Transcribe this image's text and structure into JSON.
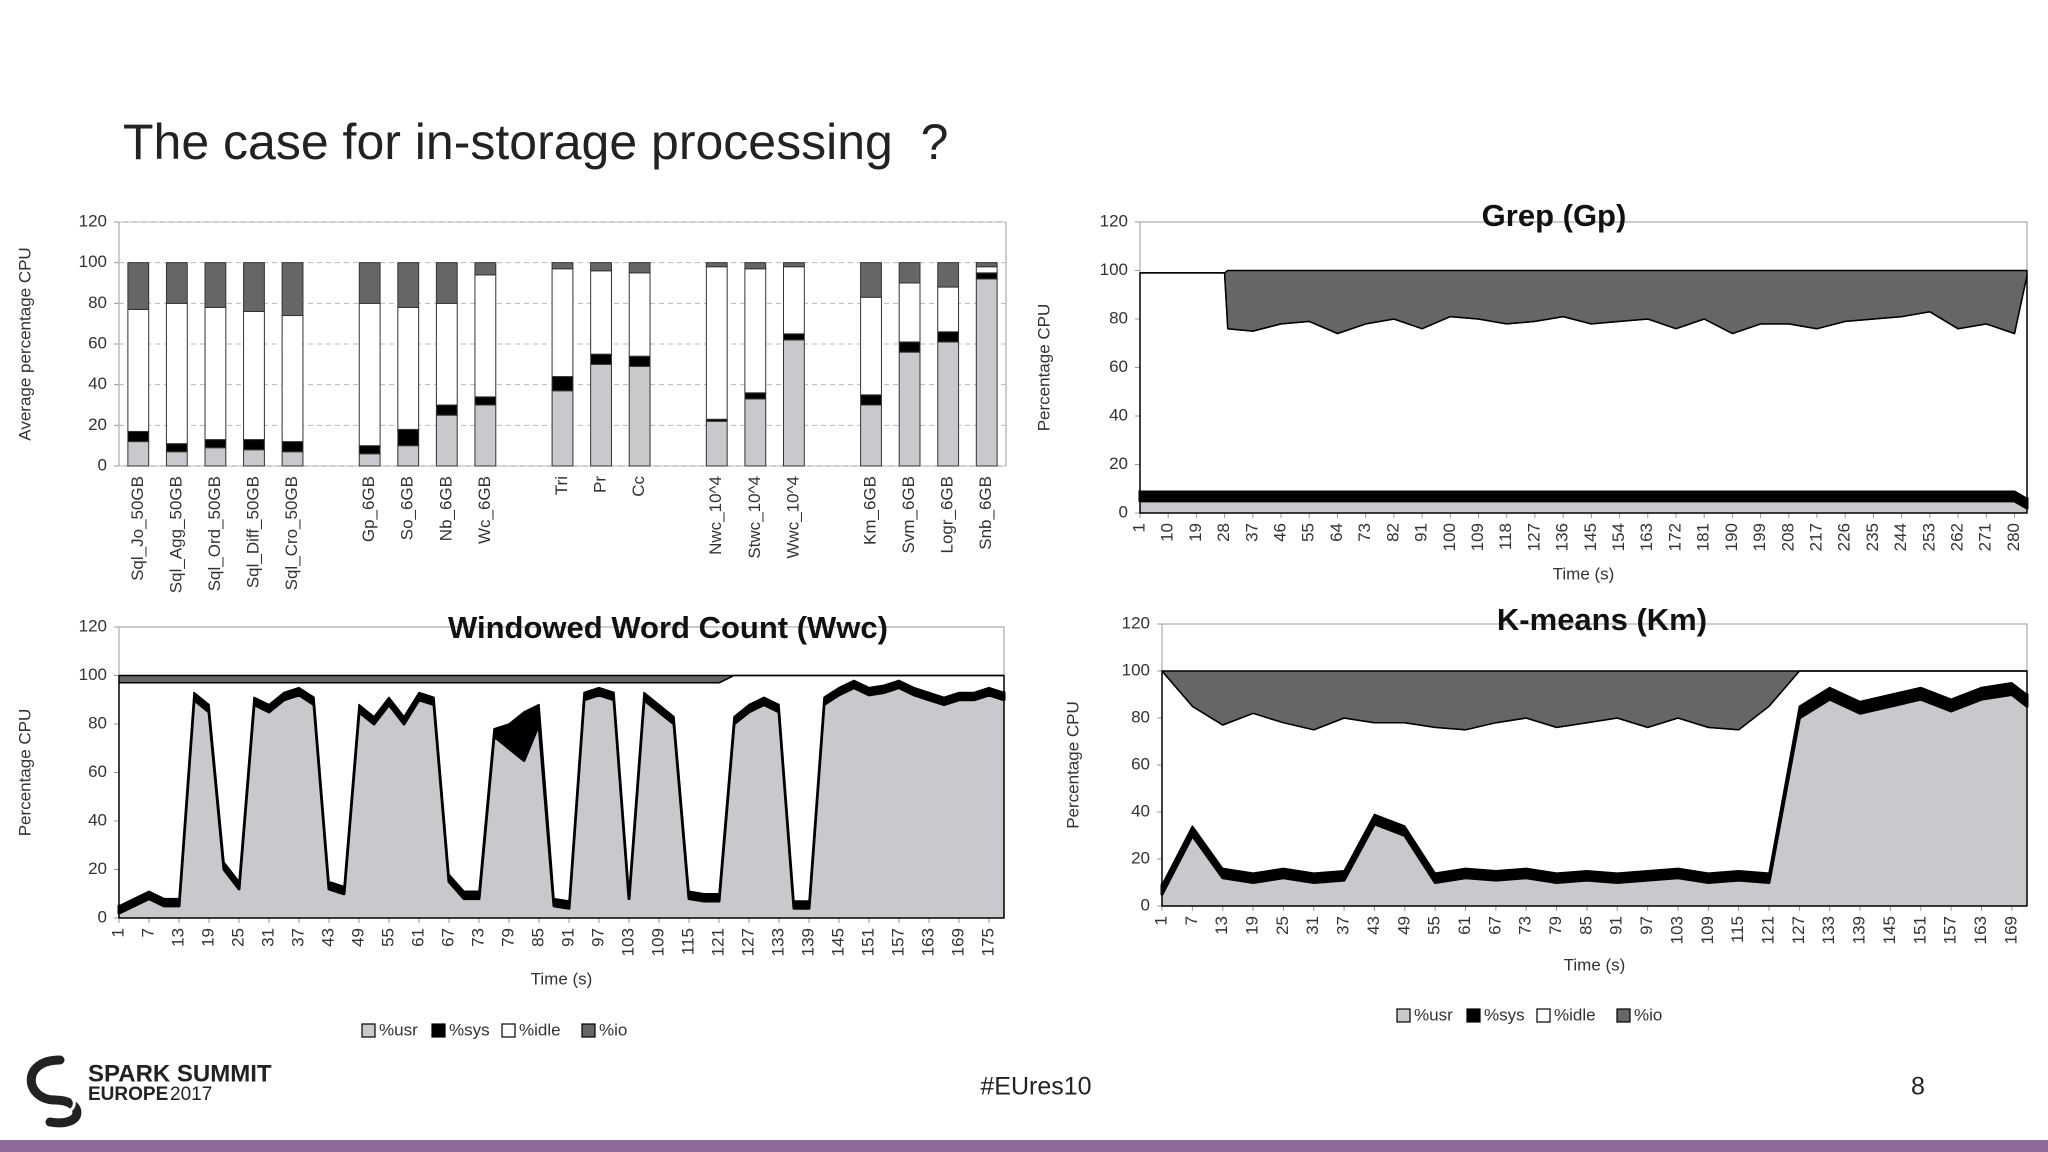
{
  "title": "The case for in-storage processing  ?",
  "footer": {
    "brand_line1": "SPARK SUMMIT",
    "brand_line2a": "EUROPE",
    "brand_line2b": "2017",
    "hashtag": "#EUres10",
    "page_number": "8"
  },
  "chart_data": [
    {
      "type": "bar",
      "stacked": true,
      "y_label": "Average percentage CPU",
      "categories": [
        "Sql_Jo_50GB",
        "Sql_Agg_50GB",
        "Sql_Ord_50GB",
        "Sql_Diff_50GB",
        "Sql_Cro_50GB",
        null,
        "Gp_6GB",
        "So_6GB",
        "Nb_6GB",
        "Wc_6GB",
        null,
        "Tri",
        "Pr",
        "Cc",
        null,
        "Nwc_10^4",
        "Stwc_10^4",
        "Wwc_10^4",
        null,
        "Km_6GB",
        "Svm_6GB",
        "Logr_6GB",
        "Snb_6GB"
      ],
      "series": [
        {
          "color": "#c9c9cd",
          "values": [
            12,
            7,
            9,
            8,
            7,
            null,
            6,
            10,
            25,
            30,
            null,
            37,
            50,
            49,
            null,
            22,
            33,
            62,
            null,
            30,
            56,
            61,
            92
          ]
        },
        {
          "color": "#000000",
          "values": [
            5,
            4,
            4,
            5,
            5,
            null,
            4,
            8,
            5,
            4,
            null,
            7,
            5,
            5,
            null,
            1,
            3,
            3,
            null,
            5,
            5,
            5,
            3
          ]
        },
        {
          "color": "#ffffff",
          "values": [
            60,
            69,
            65,
            63,
            62,
            null,
            70,
            60,
            50,
            60,
            null,
            53,
            41,
            41,
            null,
            75,
            61,
            33,
            null,
            48,
            29,
            22,
            3
          ]
        },
        {
          "color": "#666666",
          "values": [
            23,
            20,
            22,
            24,
            26,
            null,
            20,
            22,
            20,
            6,
            null,
            3,
            4,
            5,
            null,
            2,
            3,
            2,
            null,
            17,
            10,
            12,
            2
          ]
        }
      ],
      "ylim": [
        0,
        120
      ],
      "yticks": [
        0,
        20,
        40,
        60,
        80,
        100,
        120
      ],
      "grid": true
    },
    {
      "type": "area",
      "stacked": true,
      "title": "Grep (Gp)",
      "x_label": "Time (s)",
      "y_label": "Percentage CPU",
      "x": [
        1,
        10,
        19,
        28,
        29,
        37,
        46,
        55,
        64,
        73,
        82,
        91,
        100,
        109,
        118,
        127,
        136,
        145,
        154,
        163,
        172,
        181,
        190,
        199,
        208,
        217,
        226,
        235,
        244,
        253,
        262,
        271,
        280,
        284
      ],
      "series": [
        {
          "color": "#c9c9cd",
          "values": [
            5,
            5,
            5,
            5,
            5,
            5,
            5,
            5,
            5,
            5,
            5,
            5,
            5,
            5,
            5,
            5,
            5,
            5,
            5,
            5,
            5,
            5,
            5,
            5,
            5,
            5,
            5,
            5,
            5,
            5,
            5,
            5,
            5,
            2
          ]
        },
        {
          "color": "#000000",
          "values": [
            4,
            4,
            4,
            4,
            4,
            4,
            4,
            4,
            4,
            4,
            4,
            4,
            4,
            4,
            4,
            4,
            4,
            4,
            4,
            4,
            4,
            4,
            4,
            4,
            4,
            4,
            4,
            4,
            4,
            4,
            4,
            4,
            4,
            4
          ]
        },
        {
          "color": "#ffffff",
          "values": [
            90,
            90,
            90,
            90,
            67,
            66,
            69,
            70,
            65,
            69,
            71,
            67,
            72,
            71,
            69,
            70,
            72,
            69,
            70,
            71,
            67,
            71,
            65,
            69,
            69,
            67,
            70,
            71,
            72,
            74,
            67,
            69,
            65,
            92
          ]
        },
        {
          "color": "#666666",
          "values": [
            0,
            0,
            0,
            0,
            24,
            25,
            22,
            21,
            26,
            22,
            20,
            24,
            19,
            20,
            22,
            21,
            19,
            22,
            21,
            20,
            24,
            20,
            26,
            22,
            22,
            24,
            21,
            20,
            19,
            17,
            24,
            22,
            26,
            2
          ]
        }
      ],
      "xlim": [
        1,
        284
      ],
      "xticks": [
        1,
        10,
        19,
        28,
        37,
        46,
        55,
        64,
        73,
        82,
        91,
        100,
        109,
        118,
        127,
        136,
        145,
        154,
        163,
        172,
        181,
        190,
        199,
        208,
        217,
        226,
        235,
        244,
        253,
        262,
        271,
        280
      ],
      "ylim": [
        0,
        120
      ],
      "yticks": [
        0,
        20,
        40,
        60,
        80,
        100,
        120
      ],
      "grid": false
    },
    {
      "type": "area",
      "stacked": true,
      "title": "Windowed Word Count (Wwc)",
      "x_label": "Time (s)",
      "y_label": "Percentage CPU",
      "legend": "bottom",
      "x": [
        1,
        4,
        7,
        10,
        13,
        16,
        19,
        22,
        25,
        28,
        31,
        34,
        37,
        40,
        43,
        46,
        49,
        52,
        55,
        58,
        61,
        64,
        67,
        70,
        73,
        76,
        79,
        82,
        85,
        88,
        91,
        94,
        97,
        100,
        103,
        106,
        109,
        112,
        115,
        118,
        121,
        124,
        127,
        130,
        133,
        136,
        139,
        142,
        145,
        148,
        151,
        154,
        157,
        160,
        163,
        166,
        169,
        172,
        175,
        178
      ],
      "series": [
        {
          "name": "%usr",
          "color": "#c9c9cd",
          "values": [
            2,
            5,
            8,
            5,
            5,
            90,
            85,
            20,
            12,
            88,
            85,
            90,
            92,
            88,
            12,
            10,
            85,
            80,
            88,
            80,
            90,
            88,
            15,
            8,
            8,
            75,
            70,
            65,
            80,
            5,
            4,
            90,
            92,
            90,
            8,
            90,
            85,
            80,
            8,
            7,
            7,
            80,
            85,
            88,
            85,
            4,
            4,
            88,
            92,
            95,
            92,
            93,
            95,
            92,
            90,
            88,
            90,
            90,
            92,
            90
          ]
        },
        {
          "name": "%sys",
          "color": "#000000",
          "values": [
            3,
            3,
            3,
            3,
            3,
            3,
            3,
            3,
            3,
            3,
            3,
            3,
            3,
            3,
            3,
            3,
            3,
            3,
            3,
            3,
            3,
            3,
            3,
            3,
            3,
            3,
            10,
            20,
            8,
            3,
            3,
            3,
            3,
            3,
            3,
            3,
            3,
            3,
            3,
            3,
            3,
            3,
            3,
            3,
            3,
            3,
            3,
            3,
            3,
            3,
            3,
            3,
            3,
            3,
            3,
            3,
            3,
            3,
            3,
            3
          ]
        },
        {
          "name": "%idle",
          "color": "#ffffff",
          "values": [
            92,
            89,
            86,
            89,
            89,
            4,
            9,
            74,
            82,
            6,
            9,
            4,
            2,
            6,
            82,
            84,
            9,
            14,
            6,
            14,
            4,
            6,
            79,
            86,
            86,
            19,
            17,
            12,
            9,
            89,
            90,
            4,
            2,
            4,
            86,
            4,
            9,
            14,
            86,
            87,
            87,
            17,
            12,
            9,
            12,
            93,
            93,
            9,
            5,
            2,
            5,
            4,
            2,
            5,
            7,
            9,
            7,
            7,
            5,
            7
          ]
        },
        {
          "name": "%io",
          "color": "#666666",
          "values": [
            3,
            3,
            3,
            3,
            3,
            3,
            3,
            3,
            3,
            3,
            3,
            3,
            3,
            3,
            3,
            3,
            3,
            3,
            3,
            3,
            3,
            3,
            3,
            3,
            3,
            3,
            3,
            3,
            3,
            3,
            3,
            3,
            3,
            3,
            3,
            3,
            3,
            3,
            3,
            3,
            3,
            0,
            0,
            0,
            0,
            0,
            0,
            0,
            0,
            0,
            0,
            0,
            0,
            0,
            0,
            0,
            0,
            0,
            0,
            0
          ]
        }
      ],
      "xlim": [
        1,
        178
      ],
      "xticks": [
        1,
        7,
        13,
        19,
        25,
        31,
        37,
        43,
        49,
        55,
        61,
        67,
        73,
        79,
        85,
        91,
        97,
        103,
        109,
        115,
        121,
        127,
        133,
        139,
        145,
        151,
        157,
        163,
        169,
        175
      ],
      "ylim": [
        0,
        120
      ],
      "yticks": [
        0,
        20,
        40,
        60,
        80,
        100,
        120
      ],
      "grid": false
    },
    {
      "type": "area",
      "stacked": true,
      "title": "K-means (Km)",
      "x_label": "Time (s)",
      "y_label": "Percentage CPU",
      "legend": "bottom",
      "x": [
        1,
        7,
        13,
        19,
        25,
        31,
        37,
        43,
        49,
        55,
        61,
        67,
        73,
        79,
        85,
        91,
        97,
        103,
        109,
        115,
        121,
        127,
        133,
        139,
        145,
        151,
        157,
        163,
        169,
        172
      ],
      "series": [
        {
          "name": "%usr",
          "color": "#c9c9cd",
          "values": [
            5,
            30,
            12,
            10,
            12,
            10,
            11,
            35,
            30,
            10,
            12,
            11,
            12,
            10,
            11,
            10,
            11,
            12,
            10,
            11,
            10,
            80,
            88,
            82,
            85,
            88,
            83,
            88,
            90,
            85
          ]
        },
        {
          "name": "%sys",
          "color": "#000000",
          "values": [
            4,
            4,
            4,
            4,
            4,
            4,
            4,
            4,
            4,
            4,
            4,
            4,
            4,
            4,
            4,
            4,
            4,
            4,
            4,
            4,
            4,
            5,
            5,
            5,
            5,
            5,
            5,
            5,
            5,
            5
          ]
        },
        {
          "name": "%idle",
          "color": "#ffffff",
          "values": [
            91,
            51,
            61,
            68,
            62,
            61,
            65,
            39,
            44,
            62,
            59,
            63,
            64,
            62,
            63,
            66,
            61,
            64,
            62,
            60,
            71,
            15,
            7,
            13,
            10,
            7,
            12,
            7,
            5,
            10
          ]
        },
        {
          "name": "%io",
          "color": "#666666",
          "values": [
            0,
            15,
            23,
            18,
            22,
            25,
            20,
            22,
            22,
            24,
            25,
            22,
            20,
            24,
            22,
            20,
            24,
            20,
            24,
            25,
            15,
            0,
            0,
            0,
            0,
            0,
            0,
            0,
            0,
            0
          ]
        }
      ],
      "xlim": [
        1,
        172
      ],
      "xticks": [
        1,
        7,
        13,
        19,
        25,
        31,
        37,
        43,
        49,
        55,
        61,
        67,
        73,
        79,
        85,
        91,
        97,
        103,
        109,
        115,
        121,
        127,
        133,
        139,
        145,
        151,
        157,
        163,
        169
      ],
      "ylim": [
        0,
        120
      ],
      "yticks": [
        0,
        20,
        40,
        60,
        80,
        100,
        120
      ],
      "grid": false
    }
  ]
}
